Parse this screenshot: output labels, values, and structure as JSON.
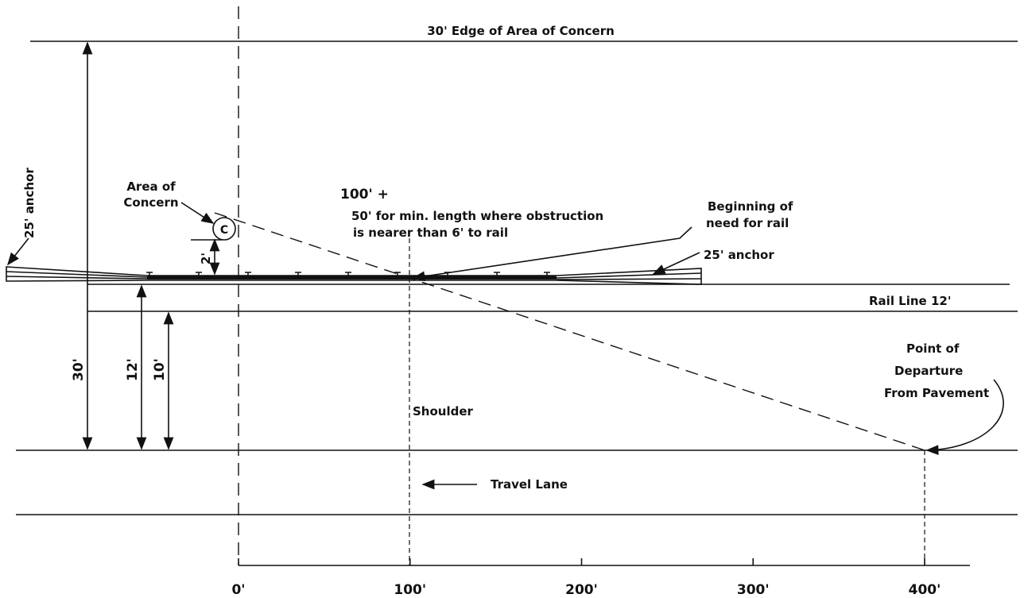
{
  "labels": {
    "edge": "30' Edge of Area of Concern",
    "area_line1": "Area of",
    "area_line2": "Concern",
    "circle": "C",
    "length_main": "100' +",
    "length_note1": "50' for min. length where obstruction",
    "length_note2": "is nearer than 6' to rail",
    "need_line1": "Beginning of",
    "need_line2": "need for rail",
    "anchor_right": "25' anchor",
    "anchor_left": "25' anchor",
    "rail_line": "Rail Line 12'",
    "offset_2": "2'",
    "dim_30": "30'",
    "dim_12": "12'",
    "dim_10": "10'",
    "departure_line1": "Point of",
    "departure_line2": "Departure",
    "departure_line3": "From Pavement",
    "shoulder": "Shoulder",
    "travel_lane": "Travel Lane"
  },
  "scale": [
    "0'",
    "100'",
    "200'",
    "300'",
    "400'"
  ]
}
